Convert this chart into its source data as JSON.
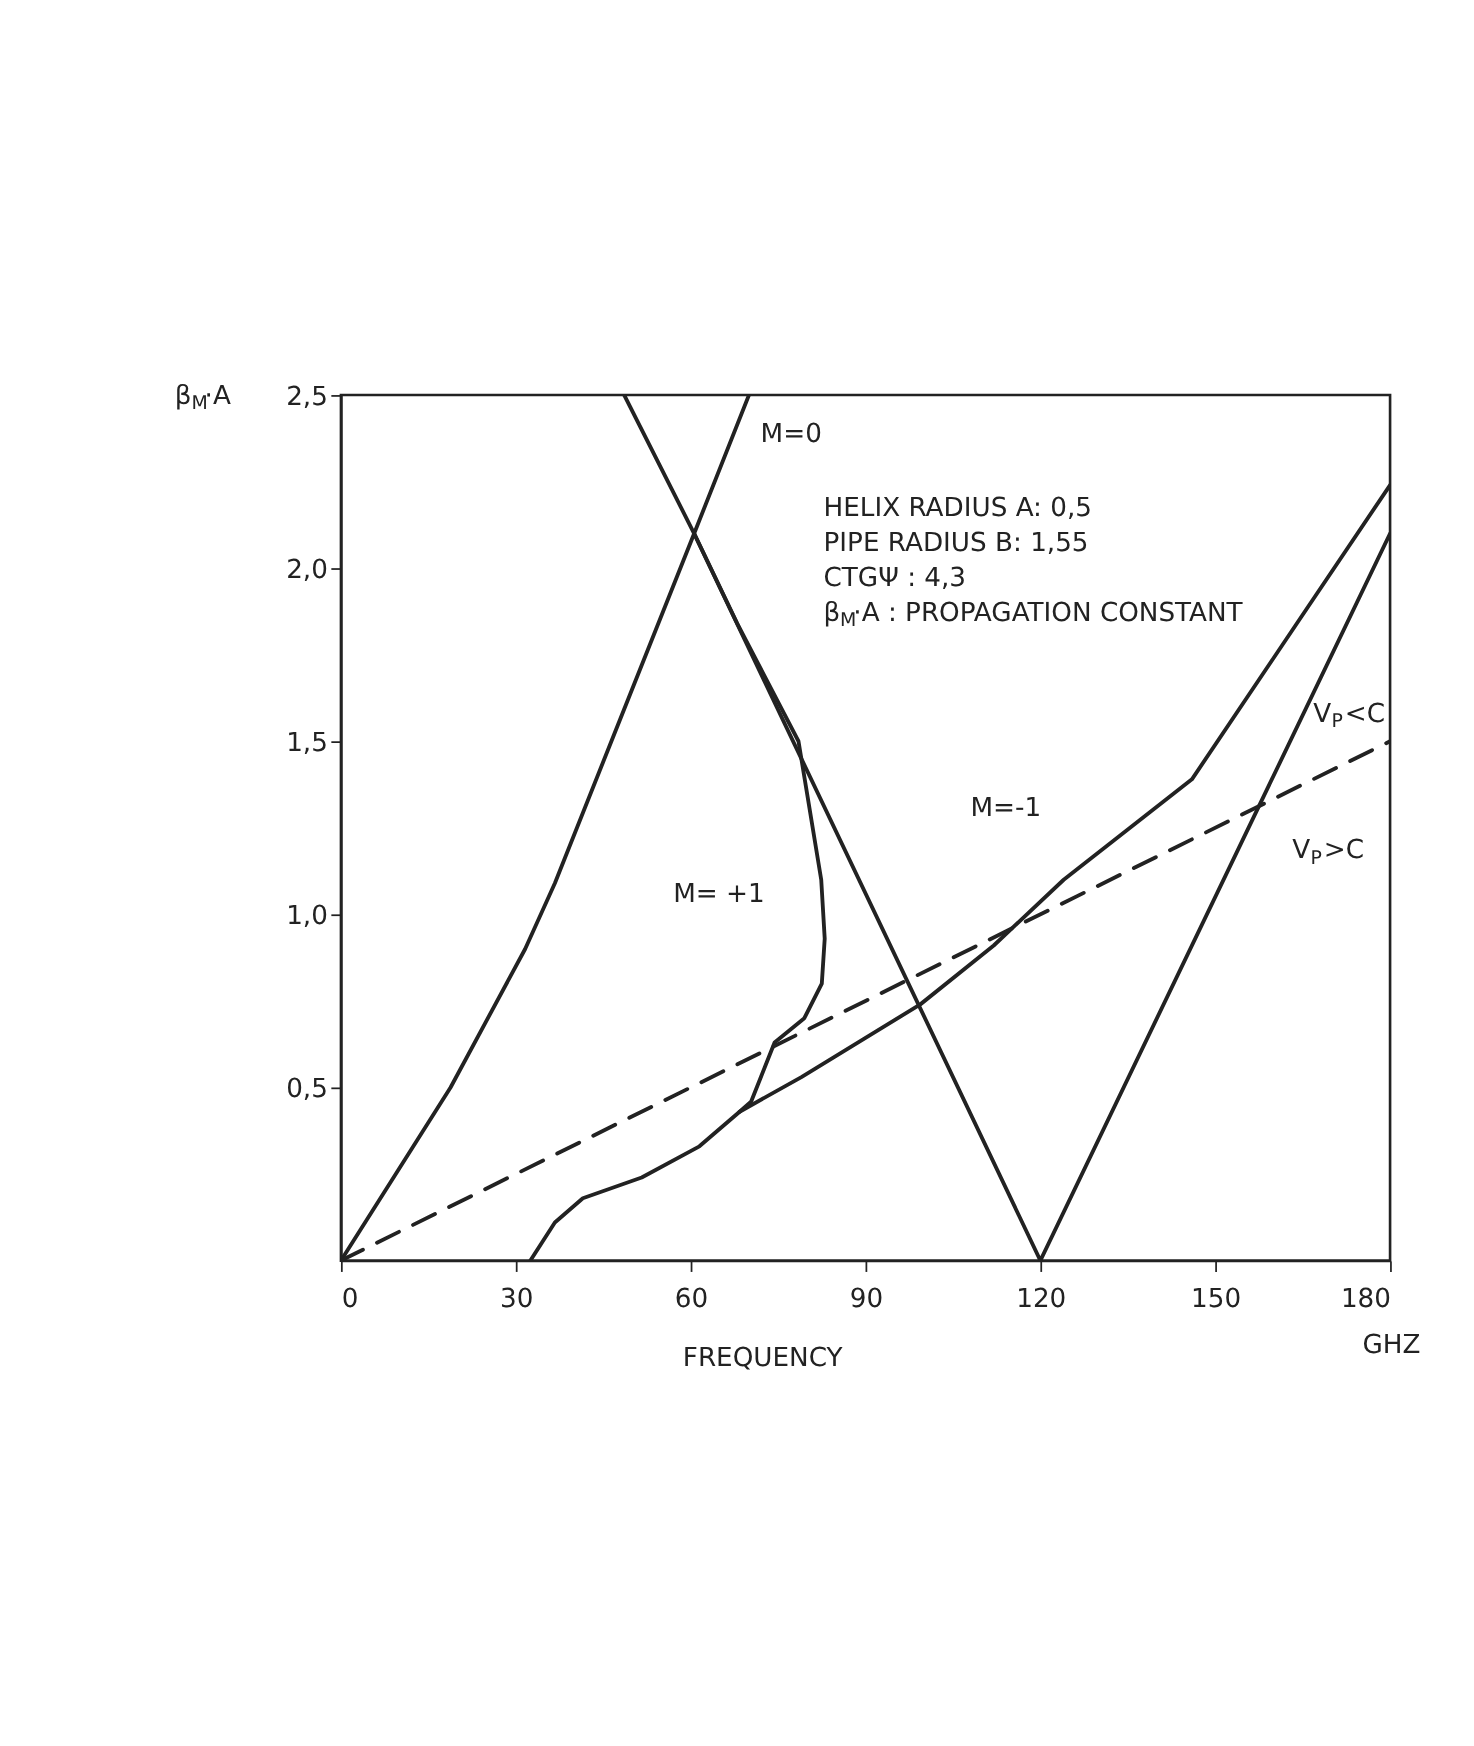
{
  "chart_data": {
    "type": "line",
    "xlabel": "FREQUENCY",
    "ylabel": "β$_{M}$·A",
    "xlim": [
      0,
      180
    ],
    "xticks": [
      0,
      30,
      60,
      90,
      120,
      150,
      180
    ],
    "ylim": [
      0,
      2.5
    ],
    "yticks": [
      {
        "value": 0.5,
        "label": "0,5"
      },
      {
        "value": 1.0,
        "label": "1,0"
      },
      {
        "value": 1.5,
        "label": "1,5"
      },
      {
        "value": 2.0,
        "label": "2,0"
      },
      {
        "value": 2.5,
        "label": "2,5"
      }
    ],
    "grid": false,
    "marker": "none",
    "series": [
      {
        "color": "#222222",
        "line_style": "solid",
        "x": [
          0,
          18.8,
          31.6,
          36.7,
          46.4,
          60.6,
          70
        ],
        "values": [
          0,
          0.5,
          0.9,
          1.09,
          1.5,
          2.1,
          2.5
        ]
      },
      {
        "color": "#222222",
        "line_style": "solid",
        "x": [
          48.6,
          60.6,
          68,
          78.5,
          82.4,
          83,
          82.5,
          79.5,
          74.4,
          70.4,
          68.4,
          61.5,
          51.6,
          41.5,
          36.7,
          32.5
        ],
        "values": [
          2.5,
          2.1,
          1.84,
          1.5,
          1.1,
          0.93,
          0.8,
          0.7,
          0.63,
          0.46,
          0.43,
          0.33,
          0.24,
          0.18,
          0.11,
          0
        ]
      },
      {
        "color": "#222222",
        "line_style": "solid",
        "x": [
          68.4,
          79,
          99.4,
          112,
          124,
          146,
          164,
          180
        ],
        "values": [
          0.43,
          0.53,
          0.74,
          0.91,
          1.1,
          1.39,
          1.84,
          2.24
        ]
      },
      {
        "color": "#222222",
        "line_style": "solid",
        "x": [
          60.6,
          120,
          180
        ],
        "values": [
          2.1,
          0,
          2.1
        ]
      },
      {
        "color": "#222222",
        "line_style": "dashed",
        "x": [
          0,
          180
        ],
        "values": [
          0,
          1.5
        ]
      }
    ],
    "annotations": [
      "M=0",
      "M= +1",
      "M=-1",
      "V$_{P}$<C",
      "V$_{P}$>C",
      "HELIX RADIUS A: 0,5",
      "PIPE RADIUS B: 1,55",
      "CTGΨ : 4,3",
      "β$_{M}$·A : PROPAGATION CONSTANT",
      "GHZ"
    ]
  }
}
